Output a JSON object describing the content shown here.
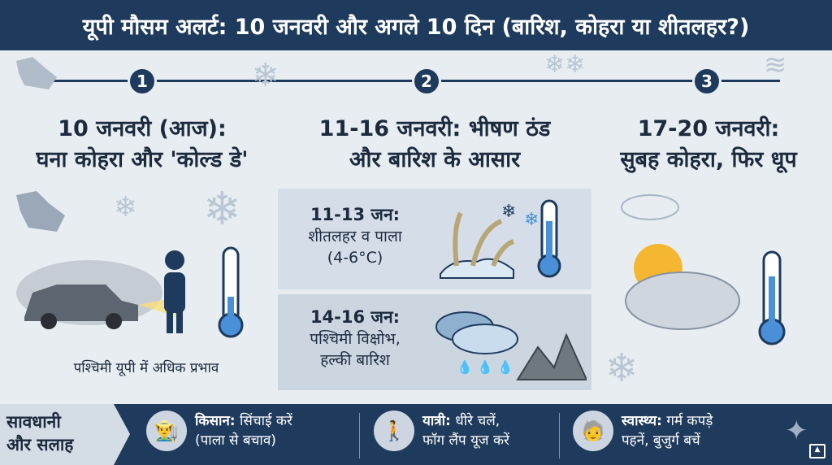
{
  "title": "यूपी मौसम अलर्ट: 10 जनवरी और अगले 10 दिन (बारिश, कोहरा या शीतलहर?)",
  "steps": [
    {
      "number": "1",
      "title_line1": "10 जनवरी (आज):",
      "title_line2": "घना कोहरा और 'कोल्ड डे'",
      "note": "पश्चिमी यूपी में अधिक प्रभाव"
    },
    {
      "number": "2",
      "title_line1": "11-16 जनवरी: भीषण ठंड",
      "title_line2": "और बारिश के आसार",
      "boxes": [
        {
          "heading": "11-13 जन:",
          "line1": "शीतलहर व पाला",
          "line2": "(4-6°C)"
        },
        {
          "heading": "14-16 जन:",
          "line1": "पश्चिमी विक्षोभ,",
          "line2": "हल्की बारिश"
        }
      ]
    },
    {
      "number": "3",
      "title_line1": "17-20 जनवरी:",
      "title_line2": "सुबह कोहरा, फिर धूप"
    }
  ],
  "advice": {
    "label_line1": "सावधानी",
    "label_line2": "और सलाह",
    "tips": [
      {
        "icon": "farmer-icon",
        "bold": "किसान:",
        "line1": " सिंचाई करें",
        "line2": "(पाला से बचाव)"
      },
      {
        "icon": "walking-person-icon",
        "bold": "यात्री:",
        "line1": " धीरे चलें,",
        "line2": "फॉग लैंप यूज करें"
      },
      {
        "icon": "elderly-person-icon",
        "bold": "स्वास्थ्य:",
        "line1": " गर्म कपड़े",
        "line2": "पहनें, बुजुर्ग बचें"
      }
    ]
  },
  "colors": {
    "navy": "#1e3a5c",
    "background": "#e8edf2",
    "thermo_blue": "#4a90d9",
    "sun": "#f5b731"
  }
}
